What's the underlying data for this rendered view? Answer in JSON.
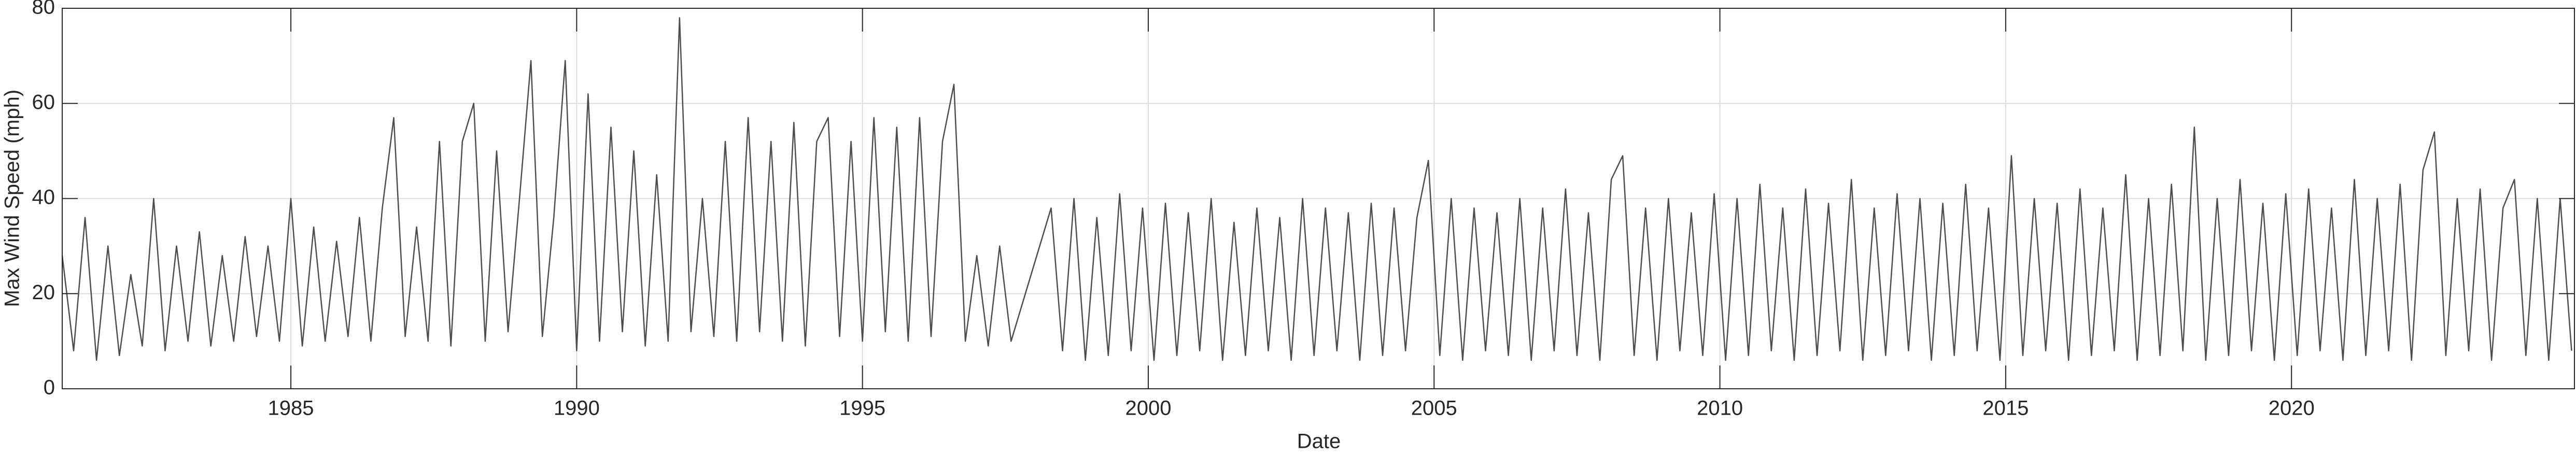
{
  "chart_data": {
    "type": "line",
    "xlabel": "Date",
    "ylabel": "Max Wind Speed (mph)",
    "xlim": [
      1981,
      2024.95
    ],
    "xticks": [
      1985,
      1990,
      1995,
      2000,
      2005,
      2010,
      2015,
      2020
    ],
    "ylim": [
      0,
      80
    ],
    "yticks": [
      0,
      20,
      40,
      60,
      80
    ],
    "grid": true,
    "series": [
      {
        "color": "#4d4d4d",
        "x": [
          1981,
          1981.2,
          1981.4,
          1981.6,
          1981.8,
          1982,
          1982.2,
          1982.4,
          1982.6,
          1982.8,
          1983,
          1983.2,
          1983.4,
          1983.6,
          1983.8,
          1984,
          1984.2,
          1984.4,
          1984.6,
          1984.8,
          1985,
          1985.2,
          1985.4,
          1985.6,
          1985.8,
          1986,
          1986.2,
          1986.4,
          1986.6,
          1986.8,
          1987,
          1987.2,
          1987.4,
          1987.6,
          1987.8,
          1988,
          1988.2,
          1988.4,
          1988.6,
          1988.8,
          1989,
          1989.2,
          1989.4,
          1989.6,
          1989.8,
          1990,
          1990.2,
          1990.4,
          1990.6,
          1990.8,
          1991,
          1991.2,
          1991.4,
          1991.6,
          1991.8,
          1992,
          1992.2,
          1992.4,
          1992.6,
          1992.8,
          1993,
          1993.2,
          1993.4,
          1993.6,
          1993.8,
          1994,
          1994.2,
          1994.4,
          1994.6,
          1994.8,
          1995,
          1995.2,
          1995.4,
          1995.6,
          1995.8,
          1996,
          1996.2,
          1996.4,
          1996.6,
          1996.8,
          1997,
          1997.2,
          1997.4,
          1997.6,
          1998.3,
          1998.5,
          1998.7,
          1998.9,
          1999.1,
          1999.3,
          1999.5,
          1999.7,
          1999.9,
          2000.1,
          2000.3,
          2000.5,
          2000.7,
          2000.9,
          2001.1,
          2001.3,
          2001.5,
          2001.7,
          2001.9,
          2002.1,
          2002.3,
          2002.5,
          2002.7,
          2002.9,
          2003.1,
          2003.3,
          2003.5,
          2003.7,
          2003.9,
          2004.1,
          2004.3,
          2004.5,
          2004.7,
          2004.9,
          2005.1,
          2005.3,
          2005.5,
          2005.7,
          2005.9,
          2006.1,
          2006.3,
          2006.5,
          2006.7,
          2006.9,
          2007.1,
          2007.3,
          2007.5,
          2007.7,
          2007.9,
          2008.1,
          2008.3,
          2008.5,
          2008.7,
          2008.9,
          2009.1,
          2009.3,
          2009.5,
          2009.7,
          2009.9,
          2010.1,
          2010.3,
          2010.5,
          2010.7,
          2010.9,
          2011.1,
          2011.3,
          2011.5,
          2011.7,
          2011.9,
          2012.1,
          2012.3,
          2012.5,
          2012.7,
          2012.9,
          2013.1,
          2013.3,
          2013.5,
          2013.7,
          2013.9,
          2014.1,
          2014.3,
          2014.5,
          2014.7,
          2014.9,
          2015.1,
          2015.3,
          2015.5,
          2015.7,
          2015.9,
          2016.1,
          2016.3,
          2016.5,
          2016.7,
          2016.9,
          2017.1,
          2017.3,
          2017.5,
          2017.7,
          2017.9,
          2018.1,
          2018.3,
          2018.5,
          2018.7,
          2018.9,
          2019.1,
          2019.3,
          2019.5,
          2019.7,
          2019.9,
          2020.1,
          2020.3,
          2020.5,
          2020.7,
          2020.9,
          2021.1,
          2021.3,
          2021.5,
          2021.7,
          2021.9,
          2022.1,
          2022.3,
          2022.5,
          2022.7,
          2022.9,
          2023.1,
          2023.3,
          2023.5,
          2023.7,
          2023.9,
          2024.1,
          2024.3,
          2024.5,
          2024.7,
          2024.9
        ],
        "values": [
          28,
          8,
          36,
          6,
          30,
          7,
          24,
          9,
          40,
          8,
          30,
          10,
          33,
          9,
          28,
          10,
          32,
          11,
          30,
          10,
          40,
          9,
          34,
          10,
          31,
          11,
          36,
          10,
          38,
          57,
          11,
          34,
          10,
          52,
          9,
          52,
          60,
          10,
          50,
          12,
          40,
          69,
          11,
          36,
          69,
          8,
          62,
          10,
          55,
          12,
          50,
          9,
          45,
          10,
          78,
          12,
          40,
          11,
          52,
          10,
          57,
          12,
          52,
          10,
          56,
          9,
          52,
          57,
          11,
          52,
          10,
          57,
          12,
          55,
          10,
          57,
          11,
          52,
          64,
          10,
          28,
          9,
          30,
          10,
          38,
          8,
          40,
          6,
          36,
          7,
          41,
          8,
          38,
          6,
          39,
          7,
          37,
          8,
          40,
          6,
          35,
          7,
          38,
          8,
          36,
          6,
          40,
          7,
          38,
          8,
          37,
          6,
          39,
          7,
          38,
          8,
          36,
          48,
          7,
          40,
          6,
          38,
          8,
          37,
          7,
          40,
          6,
          38,
          8,
          42,
          7,
          37,
          6,
          44,
          49,
          7,
          38,
          6,
          40,
          8,
          37,
          7,
          41,
          6,
          40,
          7,
          43,
          8,
          38,
          6,
          42,
          7,
          39,
          8,
          44,
          6,
          38,
          7,
          41,
          8,
          40,
          6,
          39,
          7,
          43,
          8,
          38,
          6,
          49,
          7,
          40,
          8,
          39,
          6,
          42,
          7,
          38,
          8,
          45,
          6,
          40,
          7,
          43,
          8,
          55,
          6,
          40,
          7,
          44,
          8,
          39,
          6,
          41,
          7,
          42,
          8,
          38,
          6,
          44,
          7,
          40,
          8,
          43,
          6,
          46,
          54,
          7,
          40,
          8,
          42,
          6,
          38,
          44,
          7,
          40,
          6,
          40,
          8
        ]
      }
    ]
  }
}
